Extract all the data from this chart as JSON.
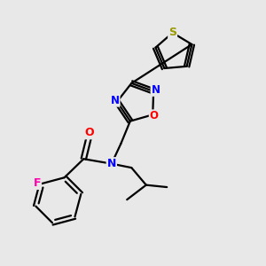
{
  "bg_color": "#e8e8e8",
  "bond_color": "#000000",
  "line_width": 1.6,
  "atom_colors": {
    "S": "#999900",
    "N": "#0000FF",
    "O": "#FF0000",
    "F": "#FF00AA",
    "C": "#000000"
  },
  "font_size": 8.5,
  "figsize": [
    3.0,
    3.0
  ],
  "dpi": 100
}
